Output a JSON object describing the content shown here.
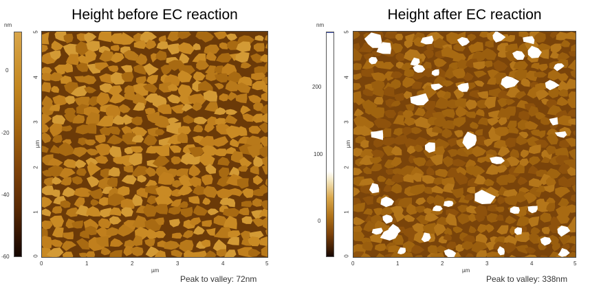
{
  "left": {
    "title": "Height before EC reaction",
    "colorbar_unit": "nm",
    "colorbar_ticks": [
      "0",
      "-20",
      "-40",
      "-60"
    ],
    "axis_unit": "µm",
    "x_ticks": [
      "0",
      "1",
      "2",
      "3",
      "4",
      "5"
    ],
    "y_ticks": [
      "0",
      "1",
      "2",
      "3",
      "4",
      "5"
    ],
    "caption": "Peak to valley: 72nm"
  },
  "right": {
    "title": "Height after EC reaction",
    "colorbar_unit": "nm",
    "colorbar_ticks": [
      "200",
      "100",
      "0"
    ],
    "axis_unit": "µm",
    "x_ticks": [
      "0",
      "1",
      "2",
      "3",
      "4",
      "5"
    ],
    "y_ticks": [
      "0",
      "1",
      "2",
      "3",
      "4",
      "5"
    ],
    "caption": "Peak to valley: 338nm"
  },
  "colors": {
    "grain_light": "#c98a24",
    "grain_mid": "#a86a12",
    "background_dark": "#6b3a08",
    "deep": "#3a1a04",
    "white_peaks": "#ffffff"
  }
}
